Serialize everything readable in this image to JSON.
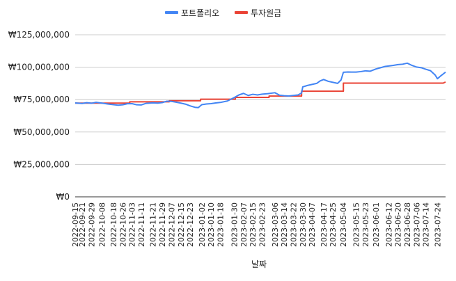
{
  "legend": {
    "items": [
      {
        "label": "포트폴리오",
        "color": "#4285f4"
      },
      {
        "label": "투자원금",
        "color": "#ea4335"
      }
    ]
  },
  "chart_data": {
    "type": "line",
    "xlabel": "날짜",
    "ylabel": "",
    "ylim": [
      0,
      125000000
    ],
    "y_ticks": [
      0,
      25000000,
      50000000,
      75000000,
      100000000,
      125000000
    ],
    "y_tick_labels": [
      "₩0",
      "₩25,000,000",
      "₩50,000,000",
      "₩75,000,000",
      "₩100,000,000",
      "₩125,000,000"
    ],
    "x_range": [
      "2022-09-15",
      "2023-07-31"
    ],
    "x_ticks": [
      "2022-09-15",
      "2022-09-21",
      "2022-09-29",
      "2022-10-08",
      "2022-10-18",
      "2022-10-26",
      "2022-11-03",
      "2022-11-11",
      "2022-11-21",
      "2022-11-29",
      "2022-12-07",
      "2022-12-15",
      "2022-12-23",
      "2023-01-02",
      "2023-01-10",
      "2023-01-18",
      "2023-01-30",
      "2023-02-07",
      "2023-02-15",
      "2023-02-23",
      "2023-03-06",
      "2023-03-14",
      "2023-03-22",
      "2023-03-30",
      "2023-04-07",
      "2023-04-17",
      "2023-04-25",
      "2023-05-04",
      "2023-05-15",
      "2023-05-23",
      "2023-06-01",
      "2023-06-12",
      "2023-06-20",
      "2023-06-28",
      "2023-07-06",
      "2023-07-14",
      "2023-07-24"
    ],
    "grid": "horizontal",
    "legend_position": "top-center",
    "series": [
      {
        "name": "포트폴리오",
        "color": "#4285f4",
        "points": [
          [
            "2022-09-15",
            72400000
          ],
          [
            "2022-09-21",
            72000000
          ],
          [
            "2022-09-25",
            72600000
          ],
          [
            "2022-09-29",
            72200000
          ],
          [
            "2022-10-03",
            72900000
          ],
          [
            "2022-10-08",
            72300000
          ],
          [
            "2022-10-13",
            71600000
          ],
          [
            "2022-10-18",
            71100000
          ],
          [
            "2022-10-22",
            70700000
          ],
          [
            "2022-10-26",
            71000000
          ],
          [
            "2022-10-30",
            71800000
          ],
          [
            "2022-11-03",
            71900000
          ],
          [
            "2022-11-07",
            71000000
          ],
          [
            "2022-11-11",
            70900000
          ],
          [
            "2022-11-15",
            72100000
          ],
          [
            "2022-11-21",
            72500000
          ],
          [
            "2022-11-25",
            72300000
          ],
          [
            "2022-11-29",
            72700000
          ],
          [
            "2022-12-03",
            73800000
          ],
          [
            "2022-12-07",
            73600000
          ],
          [
            "2022-12-11",
            73000000
          ],
          [
            "2022-12-15",
            72300000
          ],
          [
            "2022-12-19",
            71500000
          ],
          [
            "2022-12-23",
            70200000
          ],
          [
            "2022-12-27",
            69100000
          ],
          [
            "2022-12-30",
            68800000
          ],
          [
            "2023-01-02",
            71100000
          ],
          [
            "2023-01-06",
            71600000
          ],
          [
            "2023-01-10",
            71900000
          ],
          [
            "2023-01-14",
            72400000
          ],
          [
            "2023-01-18",
            72800000
          ],
          [
            "2023-01-24",
            73900000
          ],
          [
            "2023-01-30",
            76600000
          ],
          [
            "2023-02-03",
            78600000
          ],
          [
            "2023-02-07",
            79800000
          ],
          [
            "2023-02-11",
            78200000
          ],
          [
            "2023-02-15",
            79100000
          ],
          [
            "2023-02-19",
            78600000
          ],
          [
            "2023-02-23",
            79200000
          ],
          [
            "2023-02-28",
            79600000
          ],
          [
            "2023-03-06",
            80300000
          ],
          [
            "2023-03-10",
            78400000
          ],
          [
            "2023-03-14",
            78000000
          ],
          [
            "2023-03-18",
            77800000
          ],
          [
            "2023-03-22",
            78200000
          ],
          [
            "2023-03-26",
            78600000
          ],
          [
            "2023-03-29",
            80100000
          ],
          [
            "2023-03-30",
            84800000
          ],
          [
            "2023-04-03",
            85900000
          ],
          [
            "2023-04-07",
            86700000
          ],
          [
            "2023-04-11",
            87500000
          ],
          [
            "2023-04-14",
            89400000
          ],
          [
            "2023-04-17",
            90500000
          ],
          [
            "2023-04-21",
            89100000
          ],
          [
            "2023-04-25",
            88300000
          ],
          [
            "2023-04-29",
            87500000
          ],
          [
            "2023-05-02",
            90200000
          ],
          [
            "2023-05-04",
            96100000
          ],
          [
            "2023-05-08",
            96300000
          ],
          [
            "2023-05-11",
            96200000
          ],
          [
            "2023-05-15",
            96200000
          ],
          [
            "2023-05-19",
            96600000
          ],
          [
            "2023-05-23",
            97200000
          ],
          [
            "2023-05-27",
            96900000
          ],
          [
            "2023-06-01",
            98600000
          ],
          [
            "2023-06-05",
            99600000
          ],
          [
            "2023-06-09",
            100600000
          ],
          [
            "2023-06-12",
            100900000
          ],
          [
            "2023-06-16",
            101400000
          ],
          [
            "2023-06-20",
            102000000
          ],
          [
            "2023-06-24",
            102300000
          ],
          [
            "2023-06-28",
            103100000
          ],
          [
            "2023-07-02",
            101400000
          ],
          [
            "2023-07-06",
            100100000
          ],
          [
            "2023-07-10",
            99600000
          ],
          [
            "2023-07-14",
            98400000
          ],
          [
            "2023-07-18",
            97300000
          ],
          [
            "2023-07-22",
            94000000
          ],
          [
            "2023-07-24",
            91100000
          ],
          [
            "2023-07-27",
            93400000
          ],
          [
            "2023-07-31",
            96200000
          ]
        ]
      },
      {
        "name": "투자원금",
        "color": "#ea4335",
        "points": [
          [
            "2022-09-15",
            72300000
          ],
          [
            "2022-11-01",
            72300000
          ],
          [
            "2022-11-01",
            73300000
          ],
          [
            "2022-12-05",
            73300000
          ],
          [
            "2022-12-05",
            74100000
          ],
          [
            "2023-01-01",
            74100000
          ],
          [
            "2023-01-01",
            75300000
          ],
          [
            "2023-01-31",
            75300000
          ],
          [
            "2023-01-31",
            76700000
          ],
          [
            "2023-03-01",
            76700000
          ],
          [
            "2023-03-01",
            77700000
          ],
          [
            "2023-03-29",
            77700000
          ],
          [
            "2023-03-29",
            81500000
          ],
          [
            "2023-05-04",
            81500000
          ],
          [
            "2023-05-04",
            87700000
          ],
          [
            "2023-07-29",
            87700000
          ],
          [
            "2023-07-31",
            88600000
          ]
        ]
      }
    ]
  }
}
